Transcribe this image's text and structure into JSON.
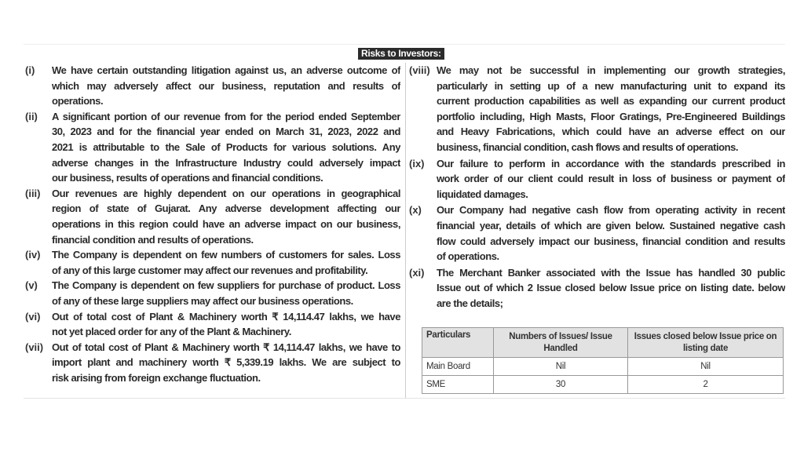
{
  "title": "Risks to Investors:",
  "left_items": [
    {
      "label": "(i)",
      "lines": [
        "We have certain outstanding litigation against us, an adverse outcome of",
        "which may adversely affect our business, reputation and results of",
        "operations."
      ]
    },
    {
      "label": "(ii)",
      "lines": [
        "A significant portion of our revenue from for the period ended September",
        "30, 2023 and for the financial year ended on March 31, 2023, 2022 and",
        "2021 is attributable to the Sale of Products for various solutions. Any",
        "adverse changes in the Infrastructure Industry could adversely impact",
        "our business, results of operations and financial conditions."
      ]
    },
    {
      "label": "(iii)",
      "lines": [
        "Our revenues are highly dependent on our operations in geographical",
        "region of state of Gujarat. Any adverse development affecting our",
        "operations in this region could have an adverse impact on our business,",
        "financial condition and results of operations."
      ]
    },
    {
      "label": "(iv)",
      "lines": [
        "The Company is dependent on few numbers of customers for sales. Loss",
        "of any of this large customer may affect our revenues and profitability."
      ]
    },
    {
      "label": "(v)",
      "lines": [
        "The Company is dependent on few suppliers for purchase of product. Loss",
        "of any of these large suppliers may affect our business operations."
      ]
    },
    {
      "label": "(vi)",
      "lines": [
        "Out of total cost of Plant & Machinery worth ₹ 14,114.47 lakhs, we have",
        "not yet placed order for any of the Plant & Machinery."
      ]
    },
    {
      "label": "(vii)",
      "lines": [
        "Out of total cost of Plant & Machinery worth ₹ 14,114.47 lakhs, we have to",
        "import plant and machinery worth ₹ 5,339.19 lakhs. We are subject to",
        "risk arising from foreign exchange fluctuation."
      ]
    }
  ],
  "right_items": [
    {
      "label": "(viii)",
      "lines": [
        "We may not be successful in implementing our growth strategies,",
        "particularly in setting up of a new manufacturing unit to expand its",
        "current production capabilities as well as expanding our current product",
        "portfolio including, High Masts, Floor Gratings, Pre-Engineered Buildings",
        "and Heavy Fabrications, which could have an adverse effect on our",
        "business, financial condition, cash flows and results of operations."
      ]
    },
    {
      "label": "(ix)",
      "lines": [
        "Our failure to perform in accordance with the standards prescribed in",
        "work order of our client could result in loss of business or payment of",
        "liquidated damages."
      ]
    },
    {
      "label": "(x)",
      "lines": [
        "Our Company had negative cash flow from operating activity in recent",
        "financial year, details of which are given below. Sustained negative cash",
        "flow could adversely impact our business, financial condition and results",
        "of operations."
      ]
    },
    {
      "label": "(xi)",
      "lines": [
        "The Merchant Banker associated with the Issue has handled 30 public",
        "Issue out of which 2 Issue closed below Issue price on listing date. below",
        "are the details;"
      ]
    }
  ],
  "table": {
    "headers": [
      "Particulars",
      "Numbers of Issues/ Issue Handled",
      "Issues closed below Issue price on listing date"
    ],
    "rows": [
      [
        "Main Board",
        "Nil",
        "Nil"
      ],
      [
        "SME",
        "30",
        "2"
      ]
    ]
  }
}
